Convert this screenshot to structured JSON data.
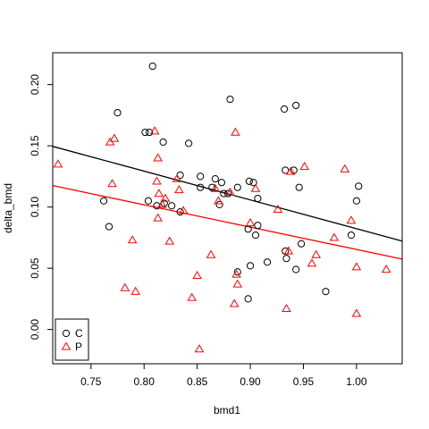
{
  "chart_data": {
    "type": "scatter",
    "xlabel": "bmd1",
    "ylabel": "delta_bmd",
    "xlim": [
      0.714,
      1.043
    ],
    "ylim": [
      -0.028,
      0.226
    ],
    "xticks": [
      0.75,
      0.8,
      0.85,
      0.9,
      0.95,
      1.0
    ],
    "xtick_labels": [
      "0.75",
      "0.80",
      "0.85",
      "0.90",
      "0.95",
      "1.00"
    ],
    "yticks": [
      0.0,
      0.05,
      0.1,
      0.15,
      0.2
    ],
    "ytick_labels": [
      "0.00",
      "0.05",
      "0.10",
      "0.15",
      "0.20"
    ],
    "legend": {
      "position": "bottom-left",
      "entries": [
        {
          "label": "C",
          "marker": "circle",
          "color": "#000000"
        },
        {
          "label": "P",
          "marker": "triangle",
          "color": "#ff0000"
        }
      ]
    },
    "series": [
      {
        "name": "C",
        "marker": "circle",
        "color": "#000000",
        "x": [
          0.808,
          0.775,
          0.801,
          0.805,
          0.818,
          0.842,
          0.834,
          0.853,
          0.867,
          0.873,
          0.881,
          0.899,
          0.903,
          0.907,
          0.932,
          0.943,
          0.933,
          0.946,
          0.941,
          0.853,
          0.864,
          0.871,
          0.879,
          0.888,
          0.905,
          0.933,
          0.762,
          0.767,
          0.804,
          0.812,
          0.819,
          0.826,
          0.834,
          0.875,
          0.898,
          0.9,
          0.907,
          0.934,
          0.948,
          0.943,
          0.888,
          0.898,
          0.916,
          0.971,
          0.995,
          1.0,
          1.002
        ],
        "y": [
          0.215,
          0.177,
          0.161,
          0.161,
          0.153,
          0.152,
          0.126,
          0.125,
          0.123,
          0.12,
          0.188,
          0.121,
          0.12,
          0.107,
          0.18,
          0.183,
          0.13,
          0.116,
          0.13,
          0.116,
          0.116,
          0.102,
          0.111,
          0.116,
          0.077,
          0.064,
          0.105,
          0.084,
          0.105,
          0.101,
          0.103,
          0.101,
          0.096,
          0.111,
          0.082,
          0.052,
          0.085,
          0.058,
          0.07,
          0.049,
          0.047,
          0.025,
          0.055,
          0.031,
          0.077,
          0.105,
          0.117
        ]
      },
      {
        "name": "P",
        "marker": "triangle",
        "color": "#ff0000",
        "x": [
          0.719,
          0.768,
          0.772,
          0.77,
          0.782,
          0.789,
          0.792,
          0.81,
          0.813,
          0.812,
          0.813,
          0.817,
          0.814,
          0.82,
          0.824,
          0.831,
          0.833,
          0.837,
          0.845,
          0.85,
          0.852,
          0.863,
          0.867,
          0.87,
          0.881,
          0.885,
          0.886,
          0.888,
          0.9,
          0.905,
          0.926,
          0.934,
          0.936,
          0.938,
          0.951,
          0.958,
          0.962,
          0.979,
          0.989,
          0.995,
          1.0,
          1.0,
          1.028,
          0.887
        ],
        "y": [
          0.135,
          0.153,
          0.156,
          0.119,
          0.034,
          0.073,
          0.031,
          0.162,
          0.14,
          0.121,
          0.091,
          0.102,
          0.111,
          0.107,
          0.072,
          0.123,
          0.114,
          0.097,
          0.026,
          0.044,
          -0.016,
          0.061,
          0.115,
          0.105,
          0.112,
          0.021,
          0.161,
          0.037,
          0.087,
          0.115,
          0.098,
          0.017,
          0.064,
          0.129,
          0.133,
          0.054,
          0.061,
          0.075,
          0.131,
          0.089,
          0.051,
          0.013,
          0.049,
          0.045
        ]
      }
    ],
    "lines": [
      {
        "name": "C fit",
        "color": "#000000",
        "x": [
          0.714,
          1.043
        ],
        "y": [
          0.1495,
          0.0722
        ]
      },
      {
        "name": "P fit",
        "color": "#ff0000",
        "x": [
          0.714,
          1.043
        ],
        "y": [
          0.1175,
          0.0575
        ]
      }
    ]
  }
}
